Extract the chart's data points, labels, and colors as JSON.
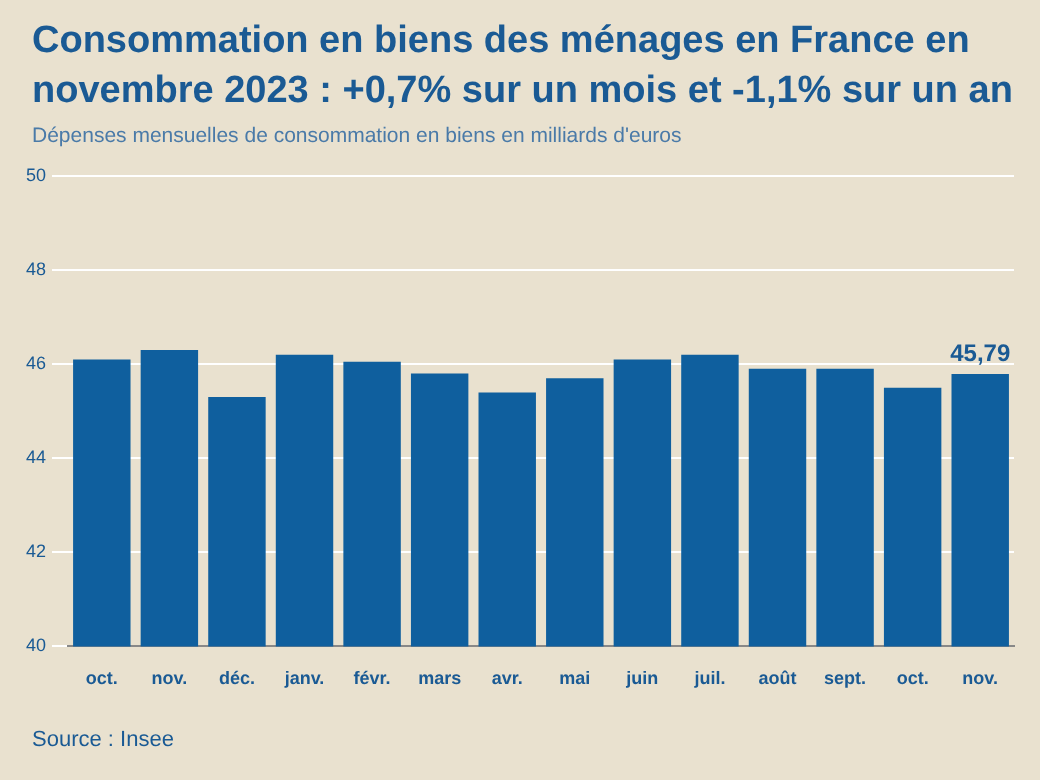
{
  "chart_data": {
    "type": "bar",
    "title": "Consommation en biens des ménages en France en novembre 2023 : +0,7% sur un mois et -1,1% sur un an",
    "subtitle": "Dépenses mensuelles de consommation en biens en milliards d'euros",
    "categories": [
      "oct.",
      "nov.",
      "déc.",
      "janv.",
      "févr.",
      "mars",
      "avr.",
      "mai",
      "juin",
      "juil.",
      "août",
      "sept.",
      "oct.",
      "nov."
    ],
    "values": [
      46.1,
      46.3,
      45.3,
      46.2,
      46.05,
      45.8,
      45.4,
      45.7,
      46.1,
      46.2,
      45.9,
      45.9,
      45.5,
      45.79
    ],
    "value_labels": [
      null,
      null,
      null,
      null,
      null,
      null,
      null,
      null,
      null,
      null,
      null,
      null,
      null,
      "45,79"
    ],
    "color": "#0f5f9e",
    "ylim": [
      40,
      50
    ],
    "yticks": [
      40,
      42,
      44,
      46,
      48,
      50
    ],
    "grid": "y",
    "legend": false,
    "annotations": [
      "Source : Insee"
    ]
  }
}
